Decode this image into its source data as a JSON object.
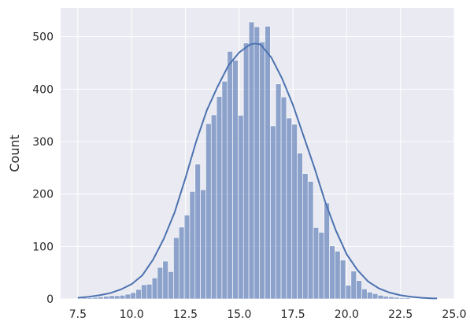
{
  "chart_data": {
    "type": "bar",
    "subtype": "histogram-with-kde",
    "title": "",
    "xlabel": "",
    "ylabel": "Count",
    "xlim": [
      6.7,
      25.0
    ],
    "ylim": [
      0,
      555
    ],
    "xticks": [
      7.5,
      10.0,
      12.5,
      15.0,
      17.5,
      20.0,
      22.5,
      25.0
    ],
    "xtick_labels": [
      "7.5",
      "10.0",
      "12.5",
      "15.0",
      "17.5",
      "20.0",
      "22.5",
      "25.0"
    ],
    "yticks": [
      0,
      100,
      200,
      300,
      400,
      500
    ],
    "ytick_labels": [
      "0",
      "100",
      "200",
      "300",
      "400",
      "500"
    ],
    "grid": true,
    "background_color": "#eaeaf2",
    "bar_color": "#4c72b0",
    "kde_color": "#4c72b0",
    "bin_start": 7.45,
    "bin_width": 0.25,
    "counts": [
      1,
      2,
      2,
      3,
      4,
      5,
      6,
      6,
      7,
      9,
      12,
      18,
      27,
      28,
      40,
      60,
      72,
      52,
      117,
      137,
      160,
      205,
      257,
      208,
      334,
      351,
      386,
      415,
      472,
      455,
      350,
      488,
      528,
      519,
      490,
      520,
      330,
      410,
      385,
      345,
      333,
      278,
      239,
      224,
      136,
      127,
      183,
      101,
      91,
      74,
      26,
      53,
      35,
      19,
      13,
      10,
      7,
      5,
      4,
      3,
      2,
      2,
      1,
      1,
      1,
      0,
      0,
      1
    ],
    "kde": {
      "x": [
        7.5,
        8.0,
        8.5,
        9.0,
        9.5,
        10.0,
        10.5,
        11.0,
        11.5,
        12.0,
        12.5,
        13.0,
        13.5,
        14.0,
        14.5,
        15.0,
        15.5,
        15.75,
        16.0,
        16.5,
        17.0,
        17.5,
        18.0,
        18.5,
        19.0,
        19.5,
        20.0,
        20.5,
        21.0,
        21.5,
        22.0,
        22.5,
        23.0,
        23.5,
        24.0,
        24.2
      ],
      "y": [
        2,
        4,
        7,
        11,
        18,
        28,
        45,
        75,
        115,
        165,
        230,
        300,
        360,
        405,
        445,
        470,
        485,
        487,
        485,
        460,
        420,
        370,
        310,
        250,
        185,
        130,
        85,
        55,
        33,
        20,
        12,
        7,
        4,
        2,
        1,
        1
      ]
    }
  }
}
